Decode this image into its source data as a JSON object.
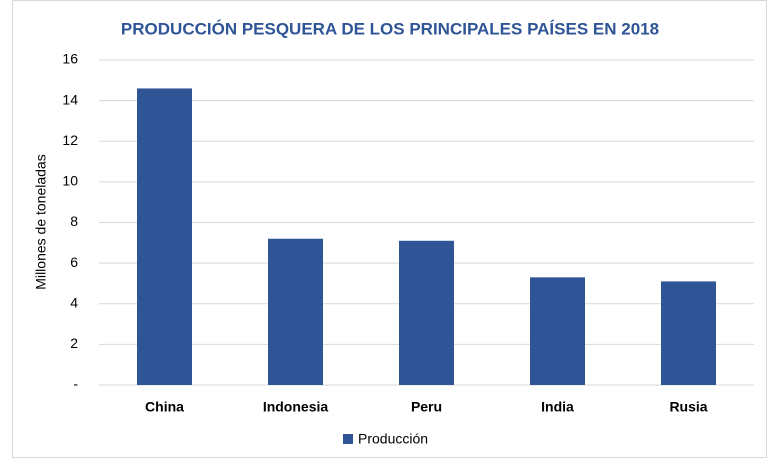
{
  "chart_data": {
    "type": "bar",
    "title": "PRODUCCIÓN PESQUERA DE LOS PRINCIPALES PAÍSES EN 2018",
    "y_label": "Millones de toneladas",
    "categories": [
      "China",
      "Indonesia",
      "Peru",
      "India",
      "Rusia"
    ],
    "series": [
      {
        "name": "Producción",
        "color": "#2f5597",
        "values": [
          14.6,
          7.2,
          7.1,
          5.3,
          5.1
        ]
      }
    ],
    "ylim": [
      0,
      16
    ],
    "yticks": [
      {
        "value": 0,
        "label": "-"
      },
      2,
      4,
      6,
      8,
      10,
      12,
      14,
      16
    ],
    "grid": true,
    "legend": "bottom"
  }
}
